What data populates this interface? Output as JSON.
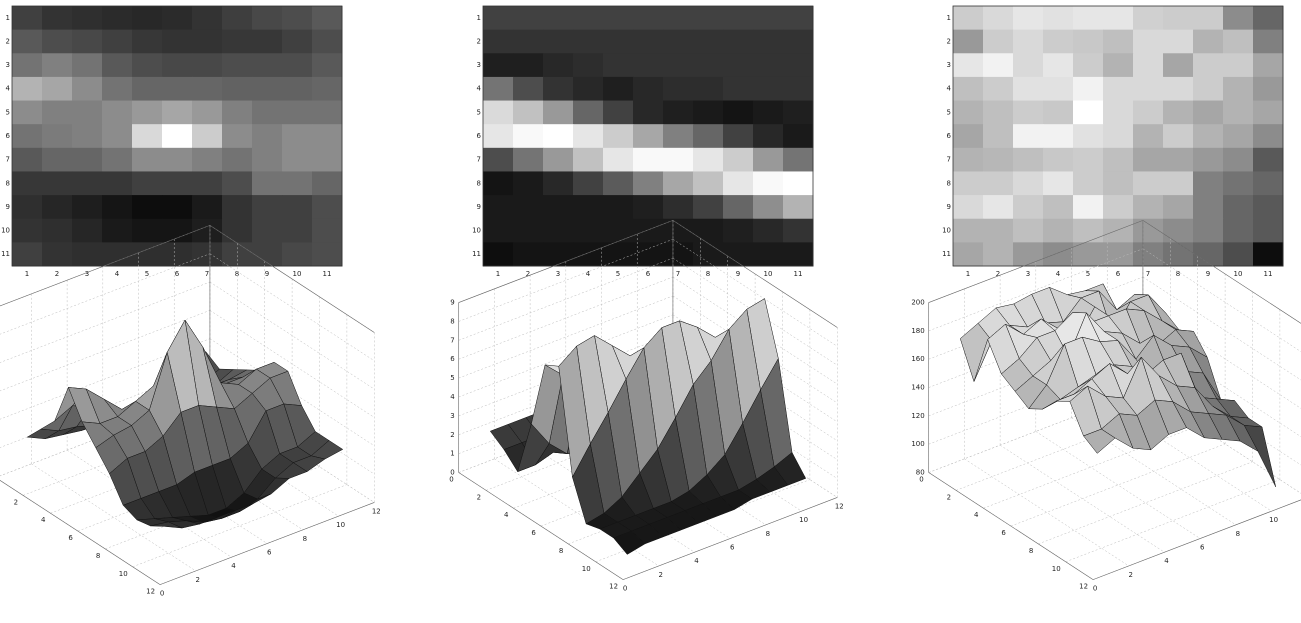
{
  "chart_data": [
    {
      "type": "heatmap-surface",
      "x": [
        1,
        2,
        3,
        4,
        5,
        6,
        7,
        8,
        9,
        10,
        11
      ],
      "y": [
        1,
        2,
        3,
        4,
        5,
        6,
        7,
        8,
        9,
        10,
        11
      ],
      "xlim": [
        0,
        12
      ],
      "xticks": [
        0,
        2,
        4,
        6,
        8,
        10,
        12
      ],
      "ylim": [
        0,
        12
      ],
      "yticks": [
        0,
        2,
        4,
        6,
        8,
        10,
        12
      ],
      "zlim": [
        0,
        12
      ],
      "zticks": [
        0,
        2,
        4,
        6,
        8,
        10,
        12
      ],
      "values": [
        [
          3.0,
          2.4,
          2.2,
          2.0,
          1.9,
          2.0,
          2.4,
          2.9,
          3.4,
          3.6,
          4.2
        ],
        [
          4.2,
          3.6,
          3.4,
          3.0,
          2.6,
          2.4,
          2.4,
          2.6,
          2.6,
          3.0,
          3.6
        ],
        [
          5.4,
          6.0,
          5.4,
          4.2,
          3.6,
          3.4,
          3.4,
          3.6,
          3.6,
          3.6,
          4.2
        ],
        [
          8.4,
          7.8,
          6.6,
          5.4,
          4.8,
          4.8,
          4.8,
          4.6,
          4.6,
          4.6,
          4.8
        ],
        [
          6.6,
          6.0,
          6.0,
          6.6,
          7.2,
          7.8,
          7.2,
          6.0,
          5.4,
          5.4,
          5.4
        ],
        [
          5.4,
          5.8,
          6.0,
          6.6,
          10.2,
          12.0,
          9.6,
          6.6,
          6.0,
          6.6,
          6.6
        ],
        [
          4.2,
          4.8,
          4.8,
          5.4,
          6.6,
          6.6,
          6.0,
          5.4,
          6.0,
          6.6,
          6.6
        ],
        [
          2.6,
          2.6,
          2.6,
          2.6,
          3.0,
          3.0,
          3.0,
          3.6,
          5.4,
          5.4,
          4.8
        ],
        [
          2.2,
          1.8,
          1.4,
          1.0,
          0.6,
          0.6,
          1.2,
          2.4,
          3.0,
          3.0,
          3.6
        ],
        [
          2.4,
          2.2,
          1.8,
          1.2,
          1.0,
          1.0,
          1.4,
          2.4,
          3.0,
          3.0,
          3.6
        ],
        [
          3.0,
          2.4,
          2.2,
          2.2,
          2.2,
          2.2,
          2.4,
          3.0,
          3.0,
          3.4,
          3.6
        ]
      ]
    },
    {
      "type": "heatmap-surface",
      "x": [
        1,
        2,
        3,
        4,
        5,
        6,
        7,
        8,
        9,
        10,
        11
      ],
      "y": [
        1,
        2,
        3,
        4,
        5,
        6,
        7,
        8,
        9,
        10,
        11
      ],
      "xlim": [
        0,
        12
      ],
      "xticks": [
        0,
        2,
        4,
        6,
        8,
        10,
        12
      ],
      "ylim": [
        0,
        12
      ],
      "yticks": [
        0,
        2,
        4,
        6,
        8,
        10,
        12
      ],
      "zlim": [
        0,
        9
      ],
      "zticks": [
        0,
        1,
        2,
        3,
        4,
        5,
        6,
        7,
        8,
        9
      ],
      "values": [
        [
          2.3,
          2.3,
          2.3,
          2.3,
          2.3,
          2.3,
          2.3,
          2.3,
          2.3,
          2.3,
          2.3
        ],
        [
          1.8,
          1.8,
          1.8,
          1.8,
          1.8,
          1.8,
          1.8,
          1.8,
          1.8,
          1.8,
          1.8
        ],
        [
          1.1,
          1.1,
          1.4,
          1.6,
          1.8,
          1.8,
          1.8,
          1.8,
          1.8,
          1.8,
          1.8
        ],
        [
          4.1,
          2.7,
          1.8,
          1.4,
          1.1,
          1.4,
          1.6,
          1.6,
          1.8,
          1.8,
          1.8
        ],
        [
          7.7,
          6.8,
          5.4,
          3.6,
          2.3,
          1.4,
          1.1,
          0.9,
          0.7,
          0.9,
          1.1
        ],
        [
          8.1,
          8.8,
          9.0,
          8.1,
          7.2,
          5.9,
          4.5,
          3.6,
          2.3,
          1.4,
          0.9
        ],
        [
          2.7,
          4.1,
          5.4,
          6.8,
          8.1,
          8.8,
          8.8,
          8.1,
          7.2,
          5.4,
          4.1
        ],
        [
          0.7,
          0.9,
          1.4,
          2.3,
          3.2,
          4.5,
          5.9,
          6.8,
          8.1,
          8.8,
          9.0
        ],
        [
          0.9,
          0.9,
          0.9,
          0.9,
          0.9,
          1.1,
          1.6,
          2.3,
          3.6,
          5.0,
          6.3
        ],
        [
          0.9,
          0.9,
          0.9,
          0.9,
          0.9,
          0.9,
          0.9,
          0.9,
          1.1,
          1.4,
          1.8
        ],
        [
          0.5,
          0.7,
          0.7,
          0.7,
          0.7,
          0.7,
          0.7,
          0.9,
          0.9,
          0.9,
          0.9
        ]
      ]
    },
    {
      "type": "heatmap-surface",
      "x": [
        1,
        2,
        3,
        4,
        5,
        6,
        7,
        8,
        9,
        10,
        11
      ],
      "y": [
        1,
        2,
        3,
        4,
        5,
        6,
        7,
        8,
        9,
        10,
        11
      ],
      "xlim": [
        0,
        12
      ],
      "xticks": [
        0,
        2,
        4,
        6,
        8,
        10,
        12
      ],
      "ylim": [
        0,
        12
      ],
      "yticks": [
        0,
        2,
        4,
        6,
        8,
        10,
        12
      ],
      "zlim": [
        80,
        200
      ],
      "zticks": [
        80,
        100,
        120,
        140,
        160,
        180,
        200
      ],
      "values": [
        [
          176,
          182,
          188,
          186,
          188,
          188,
          178,
          176,
          176,
          146,
          128
        ],
        [
          152,
          176,
          182,
          176,
          174,
          170,
          182,
          182,
          164,
          170,
          140
        ],
        [
          188,
          194,
          182,
          188,
          176,
          164,
          182,
          158,
          176,
          176,
          158
        ],
        [
          170,
          176,
          186,
          186,
          194,
          182,
          182,
          182,
          176,
          164,
          152
        ],
        [
          164,
          170,
          176,
          174,
          200,
          182,
          176,
          164,
          158,
          164,
          158
        ],
        [
          158,
          170,
          194,
          194,
          186,
          182,
          164,
          176,
          164,
          158,
          146
        ],
        [
          164,
          166,
          170,
          174,
          176,
          170,
          158,
          158,
          152,
          146,
          122
        ],
        [
          176,
          176,
          182,
          188,
          176,
          170,
          176,
          176,
          140,
          134,
          128
        ],
        [
          182,
          188,
          176,
          170,
          194,
          176,
          164,
          158,
          140,
          128,
          122
        ],
        [
          164,
          164,
          170,
          164,
          170,
          164,
          152,
          146,
          140,
          128,
          122
        ],
        [
          158,
          164,
          152,
          146,
          152,
          152,
          140,
          134,
          128,
          116,
          86
        ]
      ]
    }
  ]
}
